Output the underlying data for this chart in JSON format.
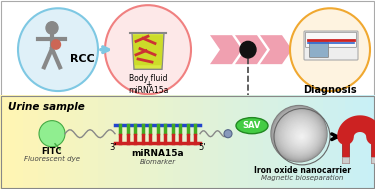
{
  "fig_width": 3.75,
  "fig_height": 1.89,
  "dpi": 100,
  "top_bg": "#ffffff",
  "circle_rcc_edge": "#7ec8e3",
  "circle_rcc_face": "#dff0f8",
  "circle_fluid_edge": "#f08080",
  "circle_fluid_face": "#fde8e8",
  "circle_diag_edge": "#f0a830",
  "circle_diag_face": "#fef3e0",
  "chevron_color": "#f0a0b0",
  "dot_color": "#111111",
  "dashed_color": "#444444",
  "body_color": "#888888",
  "beaker_fill": "#e8e870",
  "beaker_liquid": "#c8e060",
  "mirna_red": "#cc2222",
  "mirna_blue_line": "#cc3344",
  "fitc_color": "#90ee90",
  "fitc_edge": "#44aa44",
  "dna_green": "#44aa22",
  "dna_blue": "#2244cc",
  "dna_red": "#cc2222",
  "sav_color": "#44cc44",
  "sav_edge": "#228822",
  "nano_gray": "#999999",
  "magnet_red": "#cc2222",
  "magnet_silver": "#cccccc",
  "link_color": "#888888",
  "text_rcc": "RCC",
  "text_body1": "Body fluid",
  "text_body2": "+",
  "text_body3": "miRNA15a",
  "text_diagnosis": "Diagnosis",
  "text_urine": "Urine sample",
  "text_fitc": "FITC",
  "text_fitc_sub": "Fluorescent dye",
  "text_3p": "3'",
  "text_5p": "5'",
  "text_mirna": "miRNA15a",
  "text_mirna_sub": "Biomarker",
  "text_sav": "SAV",
  "text_iron": "Iron oxide nanocarrier",
  "text_iron_sub": "Magnetic bioseparation"
}
